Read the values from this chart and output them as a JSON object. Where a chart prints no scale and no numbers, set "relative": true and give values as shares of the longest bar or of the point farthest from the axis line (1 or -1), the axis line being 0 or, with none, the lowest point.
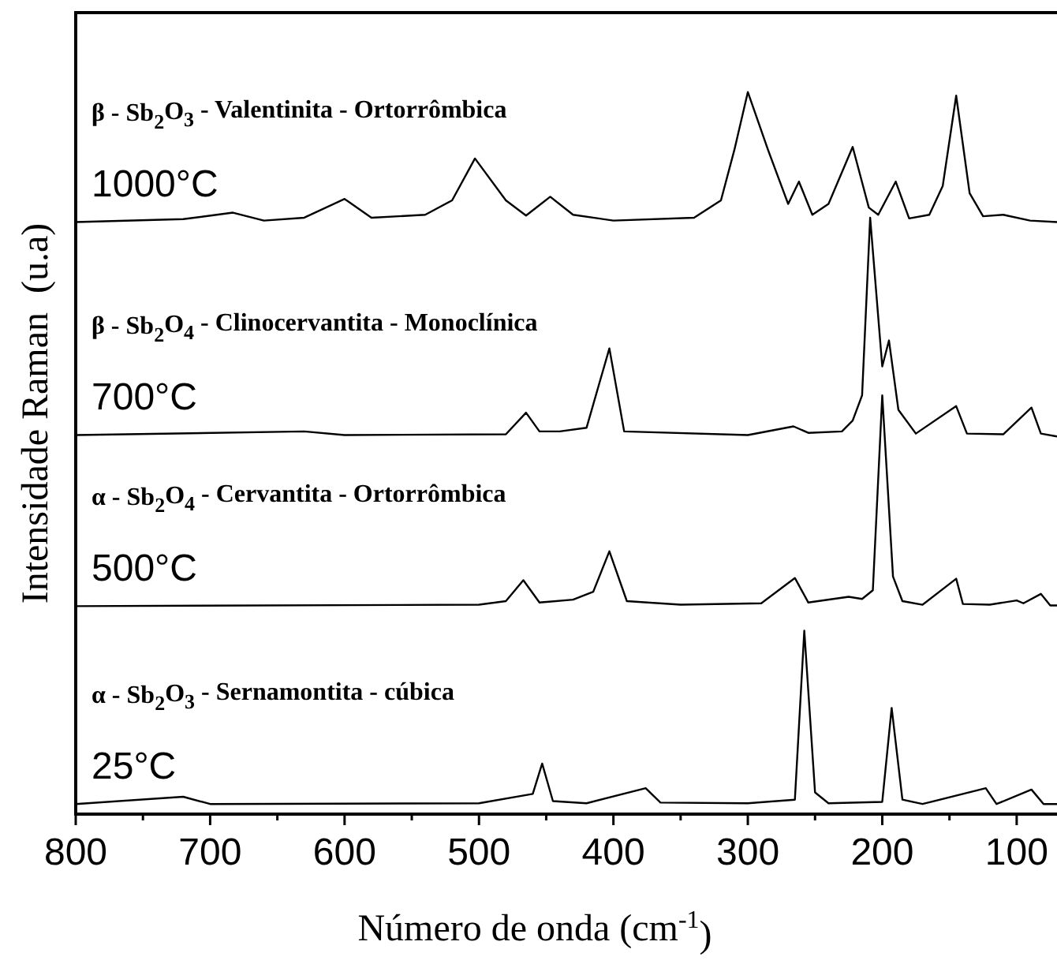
{
  "chart_data": {
    "type": "line",
    "relative": true,
    "xlabel": "Número de onda (cm$^{-1}$)",
    "ylabel": "Intensidade Raman  (u.a)",
    "xlim": [
      800,
      70
    ],
    "xticks": [
      800,
      {
        "value": 750,
        "label": null
      },
      700,
      {
        "value": 650,
        "label": null
      },
      600,
      {
        "value": 550,
        "label": null
      },
      500,
      {
        "value": 450,
        "label": null
      },
      400,
      {
        "value": 350,
        "label": null
      },
      300,
      {
        "value": 250,
        "label": null
      },
      200,
      {
        "value": 150,
        "label": null
      },
      100
    ],
    "marker": "none",
    "line_style": "solid",
    "annotations": [
      "β - Sb$_{2}$O$_{3}$ - Valentinita - Ortorrômbica",
      "β - Sb$_{2}$O$_{4}$ - Clinocervantita - Monoclínica",
      "α - Sb$_{2}$O$_{4}$ - Cervantita - Ortorrômbica",
      "α - Sb$_{2}$O$_{3}$ - Sernamontita - cúbica"
    ],
    "series": [
      {
        "name": "1000°C",
        "color": "#000000",
        "x": [
          800,
          720,
          683,
          660,
          630,
          600,
          580,
          540,
          520,
          503,
          480,
          465,
          447,
          430,
          400,
          340,
          320,
          310,
          300,
          285,
          270,
          262,
          252,
          240,
          222,
          210,
          203,
          190,
          180,
          165,
          155,
          145,
          135,
          125,
          110,
          90,
          70
        ],
        "values": [
          0.82,
          0.824,
          0.833,
          0.822,
          0.826,
          0.852,
          0.826,
          0.83,
          0.85,
          0.908,
          0.85,
          0.829,
          0.855,
          0.83,
          0.822,
          0.826,
          0.85,
          0.92,
          1.0,
          0.92,
          0.845,
          0.876,
          0.83,
          0.845,
          0.924,
          0.84,
          0.83,
          0.876,
          0.825,
          0.83,
          0.87,
          0.995,
          0.86,
          0.828,
          0.83,
          0.822,
          0.82
        ]
      },
      {
        "name": "700°C",
        "color": "#000000",
        "x": [
          800,
          630,
          600,
          480,
          465,
          455,
          440,
          420,
          403,
          392,
          300,
          266,
          255,
          230,
          222,
          215,
          209,
          200,
          195,
          188,
          175,
          145,
          137,
          110,
          89,
          82,
          70
        ],
        "values": [
          0.525,
          0.53,
          0.525,
          0.526,
          0.556,
          0.53,
          0.53,
          0.535,
          0.645,
          0.53,
          0.525,
          0.537,
          0.528,
          0.53,
          0.545,
          0.58,
          0.826,
          0.62,
          0.656,
          0.56,
          0.527,
          0.565,
          0.527,
          0.526,
          0.563,
          0.527,
          0.523
        ]
      },
      {
        "name": "500°C",
        "color": "#000000",
        "x": [
          800,
          500,
          480,
          467,
          455,
          430,
          415,
          403,
          390,
          350,
          290,
          265,
          255,
          225,
          215,
          207,
          200,
          192,
          185,
          170,
          145,
          140,
          120,
          100,
          95,
          82,
          75,
          70
        ],
        "values": [
          0.288,
          0.29,
          0.295,
          0.324,
          0.293,
          0.297,
          0.308,
          0.364,
          0.295,
          0.29,
          0.292,
          0.327,
          0.293,
          0.301,
          0.298,
          0.31,
          0.58,
          0.329,
          0.295,
          0.29,
          0.326,
          0.291,
          0.29,
          0.296,
          0.292,
          0.305,
          0.289,
          0.289
        ]
      },
      {
        "name": "25°C",
        "color": "#000000",
        "x": [
          800,
          720,
          700,
          500,
          460,
          453,
          445,
          420,
          376,
          365,
          300,
          265,
          258,
          250,
          240,
          200,
          193,
          185,
          170,
          123,
          115,
          89,
          80,
          70
        ],
        "values": [
          0.014,
          0.024,
          0.014,
          0.015,
          0.028,
          0.07,
          0.018,
          0.015,
          0.036,
          0.016,
          0.015,
          0.02,
          0.254,
          0.03,
          0.015,
          0.017,
          0.147,
          0.02,
          0.014,
          0.036,
          0.014,
          0.034,
          0.014,
          0.014
        ]
      }
    ]
  }
}
